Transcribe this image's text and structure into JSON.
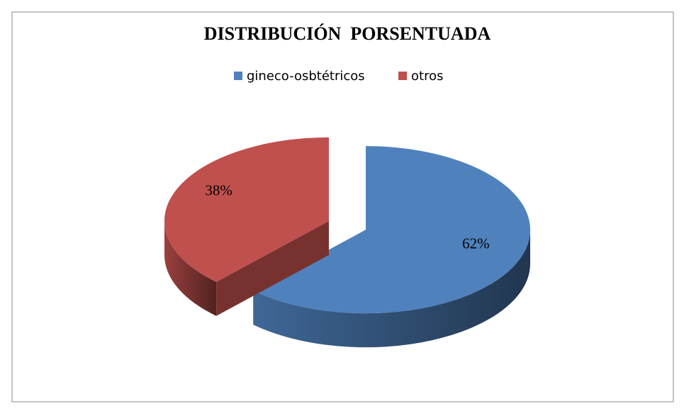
{
  "chart_data": {
    "type": "pie",
    "title": "DISTRIBUCIÓN  PORSENTUADA",
    "categories": [
      "gineco-osbtétricos",
      "otros"
    ],
    "values": [
      62,
      38
    ],
    "value_labels": [
      "62%",
      "38%"
    ],
    "colors": [
      "#4f81bd",
      "#c0504d"
    ],
    "legend": "top"
  }
}
